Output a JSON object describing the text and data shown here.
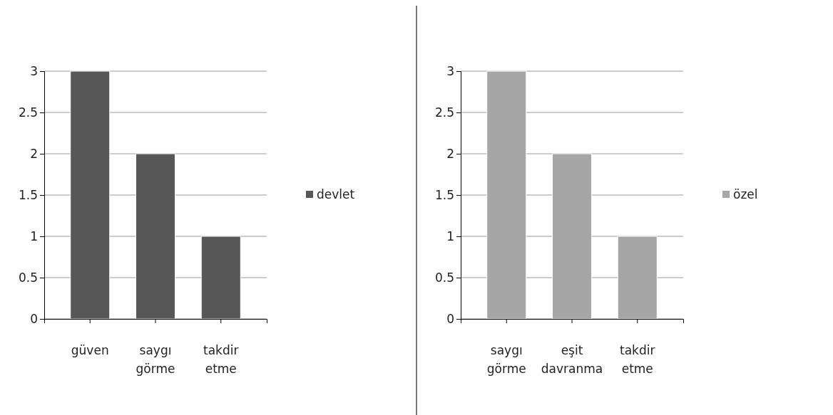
{
  "chart_data": [
    {
      "type": "bar",
      "categories": [
        "güven",
        "saygı görme",
        "takdir etme"
      ],
      "series": [
        {
          "name": "devlet",
          "color": "#575757",
          "values": [
            3,
            2,
            1
          ]
        }
      ],
      "ylim": [
        0,
        3
      ],
      "yticks": [
        0,
        0.5,
        1,
        1.5,
        2,
        2.5,
        3
      ],
      "grid": "y",
      "legend": "right"
    },
    {
      "type": "bar",
      "categories": [
        "saygı görme",
        "eşit davranma",
        "takdir etme"
      ],
      "series": [
        {
          "name": "özel",
          "color": "#a6a6a6",
          "values": [
            3,
            2,
            1
          ]
        }
      ],
      "ylim": [
        0,
        3
      ],
      "yticks": [
        0,
        0.5,
        1,
        1.5,
        2,
        2.5,
        3
      ],
      "grid": "y",
      "legend": "right"
    }
  ]
}
